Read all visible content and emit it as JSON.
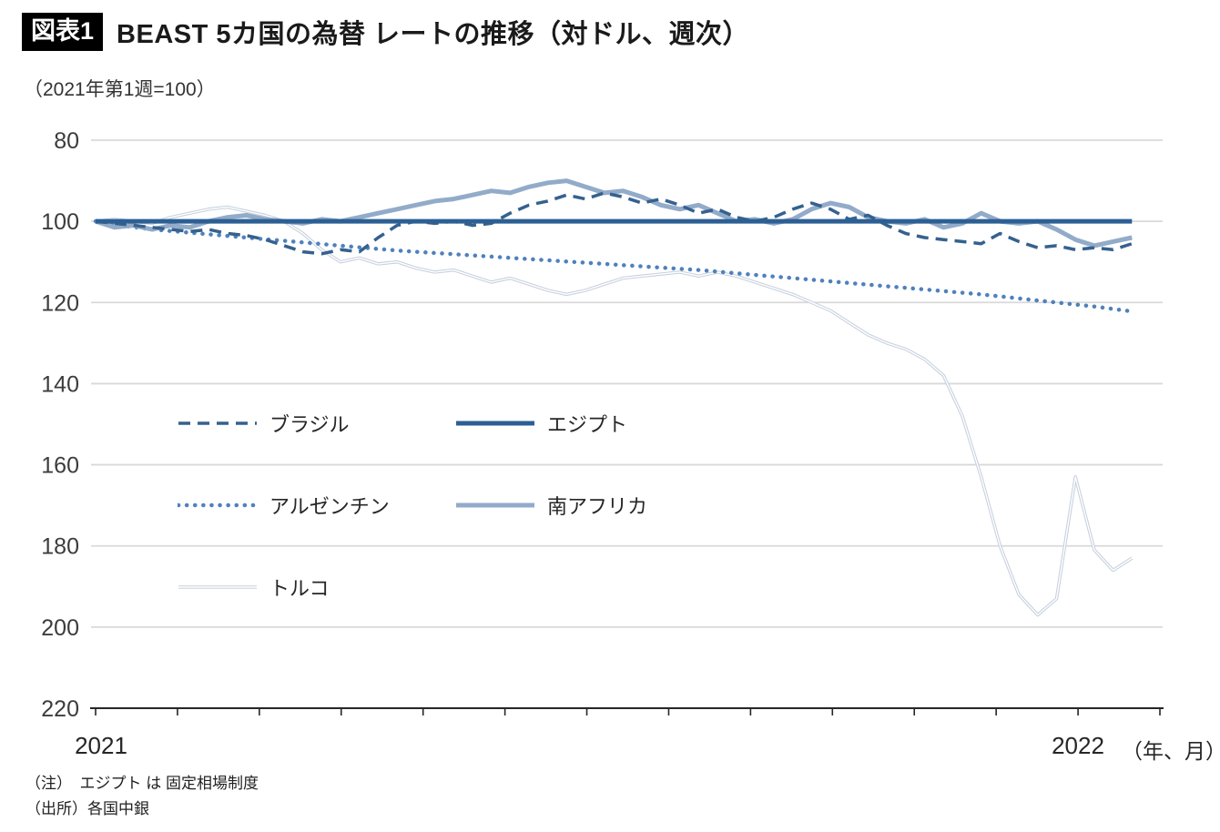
{
  "header": {
    "tag": "図表1",
    "title": "BEAST 5カ国の為替 レートの推移（対ドル、週次）",
    "subtitle": "（2021年第1週=100）"
  },
  "notes": {
    "note": "（注）　エジプト は 固定相場制度",
    "source": "（出所）各国中銀"
  },
  "chart_data": {
    "type": "line",
    "title": "BEAST 5カ国の為替 レートの推移（対ドル、週次）",
    "index_note": "2021年第1週=100",
    "x_unit": "week",
    "x_axis": {
      "start_label": "2021",
      "end_label": "2022",
      "unit_label": "（年、月）",
      "months_shown": 14,
      "weeks_per_month": 4.345,
      "end_label_month_index": 12
    },
    "y_axis": {
      "min": 80,
      "max": 220,
      "inverted": true,
      "ticks": [
        80,
        100,
        120,
        140,
        160,
        180,
        200,
        220
      ]
    },
    "grid": "horizontal",
    "legend_position": "inside-left",
    "colors": {
      "grid": "#d9d9d9",
      "axis": "#262626",
      "tick_label": "#3c3c3c",
      "double_core": "#ffffff"
    },
    "series": [
      {
        "name": "ブラジル",
        "style": "dashed",
        "color": "#35618e",
        "width": 3.5,
        "values": [
          100,
          100.5,
          101,
          101.5,
          102,
          102.5,
          102,
          103,
          103.5,
          104.5,
          106,
          107.5,
          108,
          107,
          107.5,
          104,
          101,
          100,
          100.5,
          100,
          101,
          100.5,
          98,
          96,
          95,
          93.5,
          94.5,
          93,
          94,
          95.5,
          94.5,
          96,
          98,
          97,
          99,
          100,
          99,
          97,
          95.5,
          97,
          99.5,
          98.5,
          101,
          103,
          104,
          104.5,
          105,
          105.5,
          103,
          105,
          106.5,
          106,
          107,
          106.5,
          107,
          105.5
        ]
      },
      {
        "name": "エジプト",
        "style": "solid",
        "color": "#2c5f93",
        "width": 5,
        "values": [
          100,
          100,
          100,
          100,
          100,
          100,
          100,
          100,
          100,
          100,
          100,
          100,
          100,
          100,
          100,
          100,
          100,
          100,
          100,
          100,
          100,
          100,
          100,
          100,
          100,
          100,
          100,
          100,
          100,
          100,
          100,
          100,
          100,
          100,
          100,
          100,
          100,
          100,
          100,
          100,
          100,
          100,
          100,
          100,
          100,
          100,
          100,
          100,
          100,
          100,
          100,
          100,
          100,
          100,
          100,
          100
        ]
      },
      {
        "name": "アルゼンチン",
        "style": "dotted",
        "color": "#4f81bd",
        "width": 4.5,
        "values": [
          100,
          100.7,
          101.4,
          102,
          102.4,
          102.8,
          103.2,
          103.6,
          104,
          104.4,
          104.8,
          105.2,
          105.6,
          106,
          106.4,
          106.8,
          107.2,
          107.5,
          107.8,
          108.1,
          108.4,
          108.7,
          109,
          109.3,
          109.6,
          109.9,
          110.2,
          110.5,
          110.8,
          111.1,
          111.4,
          111.7,
          112,
          112.4,
          112.8,
          113.2,
          113.6,
          114,
          114.4,
          114.8,
          115.2,
          115.6,
          116,
          116.4,
          116.8,
          117.2,
          117.6,
          118,
          118.5,
          119,
          119.5,
          120,
          120.5,
          121,
          121.6,
          122.2
        ]
      },
      {
        "name": "南アフリカ",
        "style": "solid",
        "color": "#92abc9",
        "width": 5,
        "values": [
          100,
          101.5,
          101,
          102,
          101,
          101.5,
          100,
          99,
          98.5,
          99.5,
          100,
          100.5,
          99.5,
          100,
          99,
          98,
          97,
          96,
          95,
          94.5,
          93.5,
          92.5,
          93,
          91.5,
          90.5,
          90,
          91.5,
          93,
          92.5,
          94,
          96,
          97,
          96,
          98,
          100,
          99.5,
          100.5,
          99.5,
          97,
          95.5,
          96.5,
          99,
          100,
          100.5,
          99.5,
          101.5,
          100.5,
          98,
          100,
          100.5,
          100,
          102,
          104.5,
          106,
          105,
          104
        ]
      },
      {
        "name": "トルコ",
        "style": "double-thin",
        "color": "#c6d0de",
        "width": 3.5,
        "values": [
          100,
          99.5,
          100,
          100.5,
          99,
          98,
          97,
          96.5,
          97.5,
          98.5,
          100,
          103,
          107,
          110,
          109,
          110.5,
          110,
          111.5,
          112.5,
          112,
          113.5,
          115,
          114,
          115.5,
          117,
          118,
          117,
          115.5,
          114,
          113.5,
          113,
          112.5,
          113.5,
          112.5,
          113.5,
          115,
          116.5,
          118,
          120,
          122,
          125,
          128,
          130,
          131.5,
          134,
          138,
          148,
          163,
          180,
          192,
          197,
          193,
          163,
          181,
          186,
          183
        ]
      }
    ]
  }
}
